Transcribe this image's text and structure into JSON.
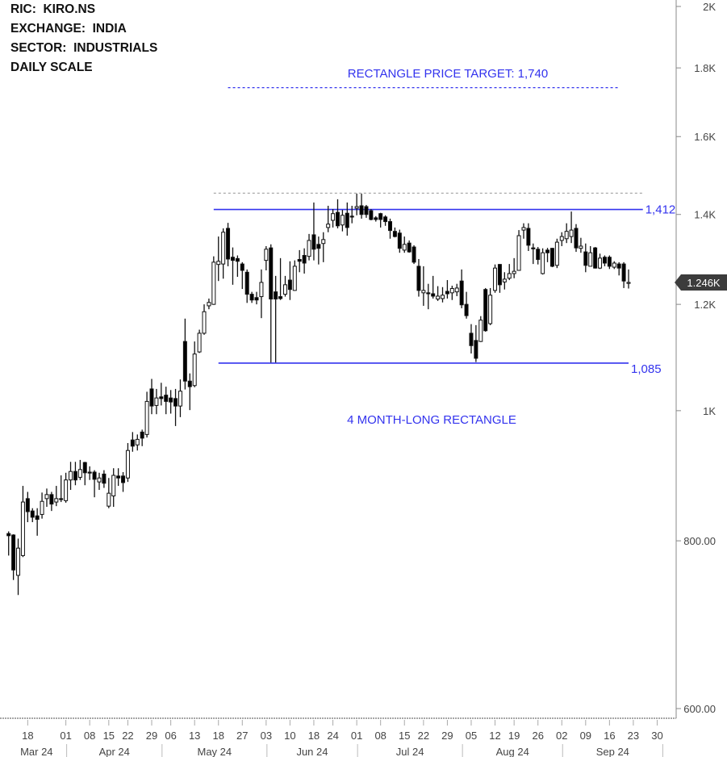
{
  "header": {
    "lines": [
      "RIC:  KIRO.NS",
      "EXCHANGE:  INDIA",
      "SECTOR:  INDUSTRIALS",
      "DAILY SCALE"
    ]
  },
  "chart_data": {
    "type": "candlestick",
    "yscale": "log",
    "ylim": [
      595,
      2020
    ],
    "grid": false,
    "y_ticks": [
      {
        "value": 2000,
        "label": "2K"
      },
      {
        "value": 1800,
        "label": "1.8K"
      },
      {
        "value": 1600,
        "label": "1.6K"
      },
      {
        "value": 1400,
        "label": "1.4K"
      },
      {
        "value": 1200,
        "label": "1.2K"
      },
      {
        "value": 1000,
        "label": "1K"
      },
      {
        "value": 800,
        "label": "800.00"
      },
      {
        "value": 600,
        "label": "600.00"
      }
    ],
    "x_ticks": [
      {
        "label": "18",
        "date": "2024-03-18"
      },
      {
        "label": "01",
        "date": "2024-04-01"
      },
      {
        "label": "08",
        "date": "2024-04-08"
      },
      {
        "label": "15",
        "date": "2024-04-15"
      },
      {
        "label": "22",
        "date": "2024-04-22"
      },
      {
        "label": "29",
        "date": "2024-04-29"
      },
      {
        "label": "06",
        "date": "2024-05-06"
      },
      {
        "label": "13",
        "date": "2024-05-13"
      },
      {
        "label": "18",
        "date": "2024-05-18"
      },
      {
        "label": "27",
        "date": "2024-05-27"
      },
      {
        "label": "03",
        "date": "2024-06-03"
      },
      {
        "label": "10",
        "date": "2024-06-10"
      },
      {
        "label": "18",
        "date": "2024-06-18"
      },
      {
        "label": "24",
        "date": "2024-06-24"
      },
      {
        "label": "01",
        "date": "2024-07-01"
      },
      {
        "label": "08",
        "date": "2024-07-08"
      },
      {
        "label": "15",
        "date": "2024-07-15"
      },
      {
        "label": "22",
        "date": "2024-07-22"
      },
      {
        "label": "29",
        "date": "2024-07-29"
      },
      {
        "label": "05",
        "date": "2024-08-05"
      },
      {
        "label": "12",
        "date": "2024-08-12"
      },
      {
        "label": "19",
        "date": "2024-08-19"
      },
      {
        "label": "26",
        "date": "2024-08-26"
      },
      {
        "label": "02",
        "date": "2024-09-02"
      },
      {
        "label": "09",
        "date": "2024-09-09"
      },
      {
        "label": "16",
        "date": "2024-09-16"
      },
      {
        "label": "23",
        "date": "2024-09-23"
      },
      {
        "label": "30",
        "date": "2024-09-30"
      }
    ],
    "months": [
      {
        "label": "Mar 24",
        "start": "2024-03-12"
      },
      {
        "label": "Apr 24",
        "start": "2024-04-01"
      },
      {
        "label": "May 24",
        "start": "2024-05-02"
      },
      {
        "label": "Jun 24",
        "start": "2024-06-03"
      },
      {
        "label": "Jul 24",
        "start": "2024-07-01"
      },
      {
        "label": "Aug 24",
        "start": "2024-08-01"
      },
      {
        "label": "Sep 24",
        "start": "2024-09-02"
      },
      {
        "label": "",
        "start": "2024-10-01"
      }
    ],
    "last_price": {
      "value": 1246,
      "label": "1.246K",
      "color": "#3c3c3c"
    },
    "levels": [
      {
        "name": "resistance",
        "value": 1412,
        "label": "1,412",
        "from": "2024-05-17",
        "to": "2024-09-25",
        "style": "solid",
        "color": "#3333ee"
      },
      {
        "name": "support",
        "value": 1085,
        "label": "1,085",
        "from": "2024-05-18",
        "to": "2024-09-20",
        "style": "solid",
        "color": "#3333ee"
      },
      {
        "name": "price-target",
        "value": 1740,
        "label": "",
        "from": "2024-05-22",
        "to": "2024-09-18",
        "style": "dashed",
        "color": "#3333ee"
      },
      {
        "name": "prior-high",
        "value": 1452,
        "label": "",
        "from": "2024-05-17",
        "to": "2024-09-25",
        "style": "dashed",
        "color": "#aaaaaa"
      }
    ],
    "annotations": {
      "target_text": "RECTANGLE PRICE TARGET: 1,740",
      "pattern_text": "4 MONTH-LONG RECTANGLE"
    },
    "colors": {
      "up": "#ffffff",
      "down": "#000000",
      "outline": "#111111",
      "annotation": "#3333ee"
    },
    "dates": [
      "2024-03-12",
      "2024-03-13",
      "2024-03-14",
      "2024-03-15",
      "2024-03-18",
      "2024-03-19",
      "2024-03-20",
      "2024-03-21",
      "2024-03-22",
      "2024-03-26",
      "2024-03-27",
      "2024-03-28",
      "2024-04-01",
      "2024-04-02",
      "2024-04-03",
      "2024-04-04",
      "2024-04-05",
      "2024-04-08",
      "2024-04-09",
      "2024-04-10",
      "2024-04-12",
      "2024-04-15",
      "2024-04-16",
      "2024-04-18",
      "2024-04-19",
      "2024-04-22",
      "2024-04-23",
      "2024-04-24",
      "2024-04-25",
      "2024-04-26",
      "2024-04-29",
      "2024-04-30",
      "2024-05-02",
      "2024-05-03",
      "2024-05-06",
      "2024-05-07",
      "2024-05-08",
      "2024-05-09",
      "2024-05-10",
      "2024-05-13",
      "2024-05-14",
      "2024-05-15",
      "2024-05-16",
      "2024-05-17",
      "2024-05-18",
      "2024-05-21",
      "2024-05-22",
      "2024-05-23",
      "2024-05-24",
      "2024-05-27",
      "2024-05-28",
      "2024-05-29",
      "2024-05-30",
      "2024-05-31",
      "2024-06-03",
      "2024-06-04",
      "2024-06-05",
      "2024-06-06",
      "2024-06-07",
      "2024-06-10",
      "2024-06-11",
      "2024-06-12",
      "2024-06-13",
      "2024-06-14",
      "2024-06-18",
      "2024-06-19",
      "2024-06-20",
      "2024-06-21",
      "2024-06-24",
      "2024-06-25",
      "2024-06-26",
      "2024-06-27",
      "2024-06-28",
      "2024-07-01",
      "2024-07-02",
      "2024-07-03",
      "2024-07-04",
      "2024-07-05",
      "2024-07-08",
      "2024-07-09",
      "2024-07-10",
      "2024-07-11",
      "2024-07-12",
      "2024-07-15",
      "2024-07-16",
      "2024-07-18",
      "2024-07-19",
      "2024-07-22",
      "2024-07-23",
      "2024-07-24",
      "2024-07-25",
      "2024-07-26",
      "2024-07-29",
      "2024-07-30",
      "2024-07-31",
      "2024-08-01",
      "2024-08-02",
      "2024-08-05",
      "2024-08-06",
      "2024-08-07",
      "2024-08-08",
      "2024-08-09",
      "2024-08-12",
      "2024-08-13",
      "2024-08-14",
      "2024-08-16",
      "2024-08-19",
      "2024-08-20",
      "2024-08-21",
      "2024-08-22",
      "2024-08-23",
      "2024-08-26",
      "2024-08-27",
      "2024-08-28",
      "2024-08-29",
      "2024-08-30",
      "2024-09-02",
      "2024-09-03",
      "2024-09-04",
      "2024-09-05",
      "2024-09-06",
      "2024-09-09",
      "2024-09-10",
      "2024-09-11",
      "2024-09-12",
      "2024-09-13",
      "2024-09-16",
      "2024-09-17",
      "2024-09-18",
      "2024-09-19",
      "2024-09-20"
    ],
    "ohlc": [
      [
        810,
        813,
        780,
        807
      ],
      [
        808,
        809,
        748,
        761
      ],
      [
        754,
        803,
        729,
        790
      ],
      [
        780,
        879,
        778,
        855
      ],
      [
        860,
        870,
        826,
        841
      ],
      [
        842,
        846,
        826,
        833
      ],
      [
        835,
        846,
        807,
        830
      ],
      [
        837,
        869,
        831,
        856
      ],
      [
        860,
        875,
        848,
        866
      ],
      [
        866,
        870,
        842,
        852
      ],
      [
        855,
        879,
        849,
        860
      ],
      [
        860,
        895,
        855,
        859
      ],
      [
        857,
        899,
        854,
        888
      ],
      [
        888,
        916,
        873,
        901
      ],
      [
        901,
        916,
        880,
        888
      ],
      [
        892,
        919,
        888,
        904
      ],
      [
        915,
        916,
        880,
        899
      ],
      [
        900,
        909,
        888,
        899
      ],
      [
        900,
        903,
        862,
        889
      ],
      [
        885,
        899,
        873,
        891
      ],
      [
        897,
        903,
        876,
        883
      ],
      [
        849,
        891,
        846,
        868
      ],
      [
        864,
        906,
        848,
        895
      ],
      [
        894,
        906,
        879,
        891
      ],
      [
        894,
        900,
        870,
        884
      ],
      [
        891,
        946,
        885,
        934
      ],
      [
        951,
        964,
        932,
        941
      ],
      [
        943,
        960,
        934,
        952
      ],
      [
        964,
        968,
        941,
        954
      ],
      [
        960,
        1033,
        955,
        1016
      ],
      [
        1038,
        1056,
        994,
        1008
      ],
      [
        1009,
        1038,
        994,
        1022
      ],
      [
        1024,
        1049,
        1009,
        1021
      ],
      [
        1027,
        1042,
        994,
        1016
      ],
      [
        1022,
        1036,
        995,
        1015
      ],
      [
        1021,
        1038,
        974,
        1008
      ],
      [
        1008,
        1055,
        989,
        1034
      ],
      [
        1126,
        1171,
        1037,
        1052
      ],
      [
        1052,
        1066,
        1001,
        1042
      ],
      [
        1044,
        1126,
        1041,
        1102
      ],
      [
        1106,
        1149,
        1104,
        1142
      ],
      [
        1142,
        1200,
        1139,
        1185
      ],
      [
        1197,
        1212,
        1190,
        1204
      ],
      [
        1200,
        1303,
        1199,
        1290
      ],
      [
        1285,
        1348,
        1249,
        1292
      ],
      [
        1286,
        1367,
        1254,
        1358
      ],
      [
        1367,
        1380,
        1281,
        1297
      ],
      [
        1301,
        1323,
        1241,
        1294
      ],
      [
        1298,
        1305,
        1258,
        1292
      ],
      [
        1286,
        1290,
        1232,
        1272
      ],
      [
        1268,
        1274,
        1203,
        1221
      ],
      [
        1221,
        1226,
        1203,
        1209
      ],
      [
        1214,
        1226,
        1200,
        1209
      ],
      [
        1216,
        1274,
        1172,
        1246
      ],
      [
        1294,
        1326,
        1272,
        1319
      ],
      [
        1322,
        1330,
        1086,
        1211
      ],
      [
        1226,
        1260,
        1086,
        1211
      ],
      [
        1216,
        1299,
        1209,
        1212
      ],
      [
        1221,
        1260,
        1216,
        1241
      ],
      [
        1251,
        1292,
        1209,
        1231
      ],
      [
        1229,
        1294,
        1228,
        1281
      ],
      [
        1296,
        1317,
        1268,
        1292
      ],
      [
        1305,
        1321,
        1265,
        1288
      ],
      [
        1303,
        1354,
        1294,
        1339
      ],
      [
        1352,
        1429,
        1294,
        1319
      ],
      [
        1330,
        1348,
        1285,
        1321
      ],
      [
        1332,
        1358,
        1290,
        1341
      ],
      [
        1369,
        1421,
        1358,
        1377
      ],
      [
        1386,
        1413,
        1369,
        1402
      ],
      [
        1405,
        1437,
        1367,
        1373
      ],
      [
        1375,
        1411,
        1360,
        1398
      ],
      [
        1403,
        1429,
        1350,
        1369
      ],
      [
        1396,
        1421,
        1379,
        1394
      ],
      [
        1415,
        1451,
        1398,
        1419
      ],
      [
        1421,
        1451,
        1390,
        1400
      ],
      [
        1419,
        1423,
        1392,
        1400
      ],
      [
        1409,
        1413,
        1386,
        1388
      ],
      [
        1392,
        1396,
        1383,
        1388
      ],
      [
        1402,
        1404,
        1369,
        1388
      ],
      [
        1394,
        1398,
        1373,
        1383
      ],
      [
        1383,
        1390,
        1343,
        1362
      ],
      [
        1360,
        1369,
        1346,
        1348
      ],
      [
        1356,
        1364,
        1311,
        1321
      ],
      [
        1317,
        1348,
        1311,
        1330
      ],
      [
        1333,
        1339,
        1311,
        1313
      ],
      [
        1324,
        1328,
        1286,
        1290
      ],
      [
        1281,
        1297,
        1216,
        1229
      ],
      [
        1224,
        1281,
        1197,
        1229
      ],
      [
        1224,
        1243,
        1190,
        1222
      ],
      [
        1222,
        1260,
        1212,
        1217
      ],
      [
        1211,
        1238,
        1207,
        1217
      ],
      [
        1212,
        1236,
        1204,
        1219
      ],
      [
        1227,
        1251,
        1212,
        1222
      ],
      [
        1224,
        1239,
        1209,
        1233
      ],
      [
        1226,
        1243,
        1217,
        1234
      ],
      [
        1249,
        1274,
        1192,
        1199
      ],
      [
        1200,
        1226,
        1171,
        1177
      ],
      [
        1142,
        1160,
        1103,
        1118
      ],
      [
        1128,
        1158,
        1087,
        1094
      ],
      [
        1126,
        1176,
        1125,
        1168
      ],
      [
        1231,
        1234,
        1145,
        1147
      ],
      [
        1161,
        1234,
        1158,
        1219
      ],
      [
        1229,
        1285,
        1224,
        1277
      ],
      [
        1285,
        1286,
        1224,
        1241
      ],
      [
        1247,
        1268,
        1231,
        1253
      ],
      [
        1255,
        1286,
        1251,
        1265
      ],
      [
        1265,
        1299,
        1255,
        1270
      ],
      [
        1272,
        1363,
        1272,
        1350
      ],
      [
        1363,
        1379,
        1343,
        1369
      ],
      [
        1367,
        1379,
        1315,
        1328
      ],
      [
        1322,
        1332,
        1286,
        1321
      ],
      [
        1319,
        1324,
        1285,
        1296
      ],
      [
        1265,
        1321,
        1263,
        1311
      ],
      [
        1317,
        1322,
        1290,
        1311
      ],
      [
        1321,
        1322,
        1279,
        1281
      ],
      [
        1283,
        1343,
        1277,
        1335
      ],
      [
        1339,
        1358,
        1326,
        1348
      ],
      [
        1343,
        1379,
        1333,
        1360
      ],
      [
        1348,
        1407,
        1333,
        1363
      ],
      [
        1367,
        1377,
        1313,
        1322
      ],
      [
        1321,
        1345,
        1311,
        1326
      ],
      [
        1313,
        1332,
        1268,
        1283
      ],
      [
        1281,
        1326,
        1281,
        1311
      ],
      [
        1322,
        1324,
        1276,
        1277
      ],
      [
        1277,
        1309,
        1275,
        1299
      ],
      [
        1301,
        1305,
        1281,
        1288
      ],
      [
        1301,
        1305,
        1275,
        1281
      ],
      [
        1279,
        1292,
        1275,
        1288
      ],
      [
        1286,
        1290,
        1261,
        1277
      ],
      [
        1286,
        1290,
        1234,
        1249
      ],
      [
        1244,
        1274,
        1233,
        1246
      ]
    ]
  }
}
